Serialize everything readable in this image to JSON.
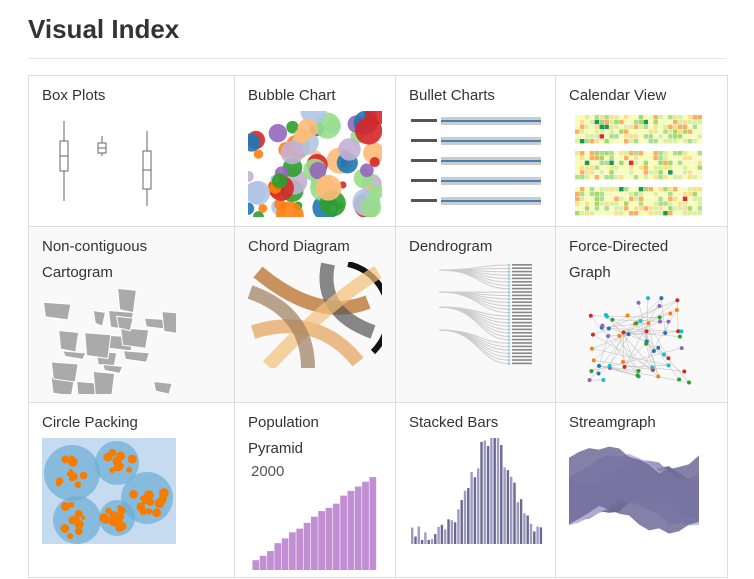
{
  "header": {
    "title": "Visual Index"
  },
  "cells": [
    {
      "label": "Box Plots"
    },
    {
      "label": "Bubble Chart"
    },
    {
      "label": "Bullet Charts"
    },
    {
      "label": "Calendar View"
    },
    {
      "label": "Non-contiguous Cartogram"
    },
    {
      "label": "Chord Diagram"
    },
    {
      "label": "Dendrogram"
    },
    {
      "label": "Force-Directed Graph"
    },
    {
      "label": "Circle Packing"
    },
    {
      "label": "Population Pyramid",
      "thumb_text": "2000"
    },
    {
      "label": "Stacked Bars"
    },
    {
      "label": "Streamgraph"
    }
  ]
}
